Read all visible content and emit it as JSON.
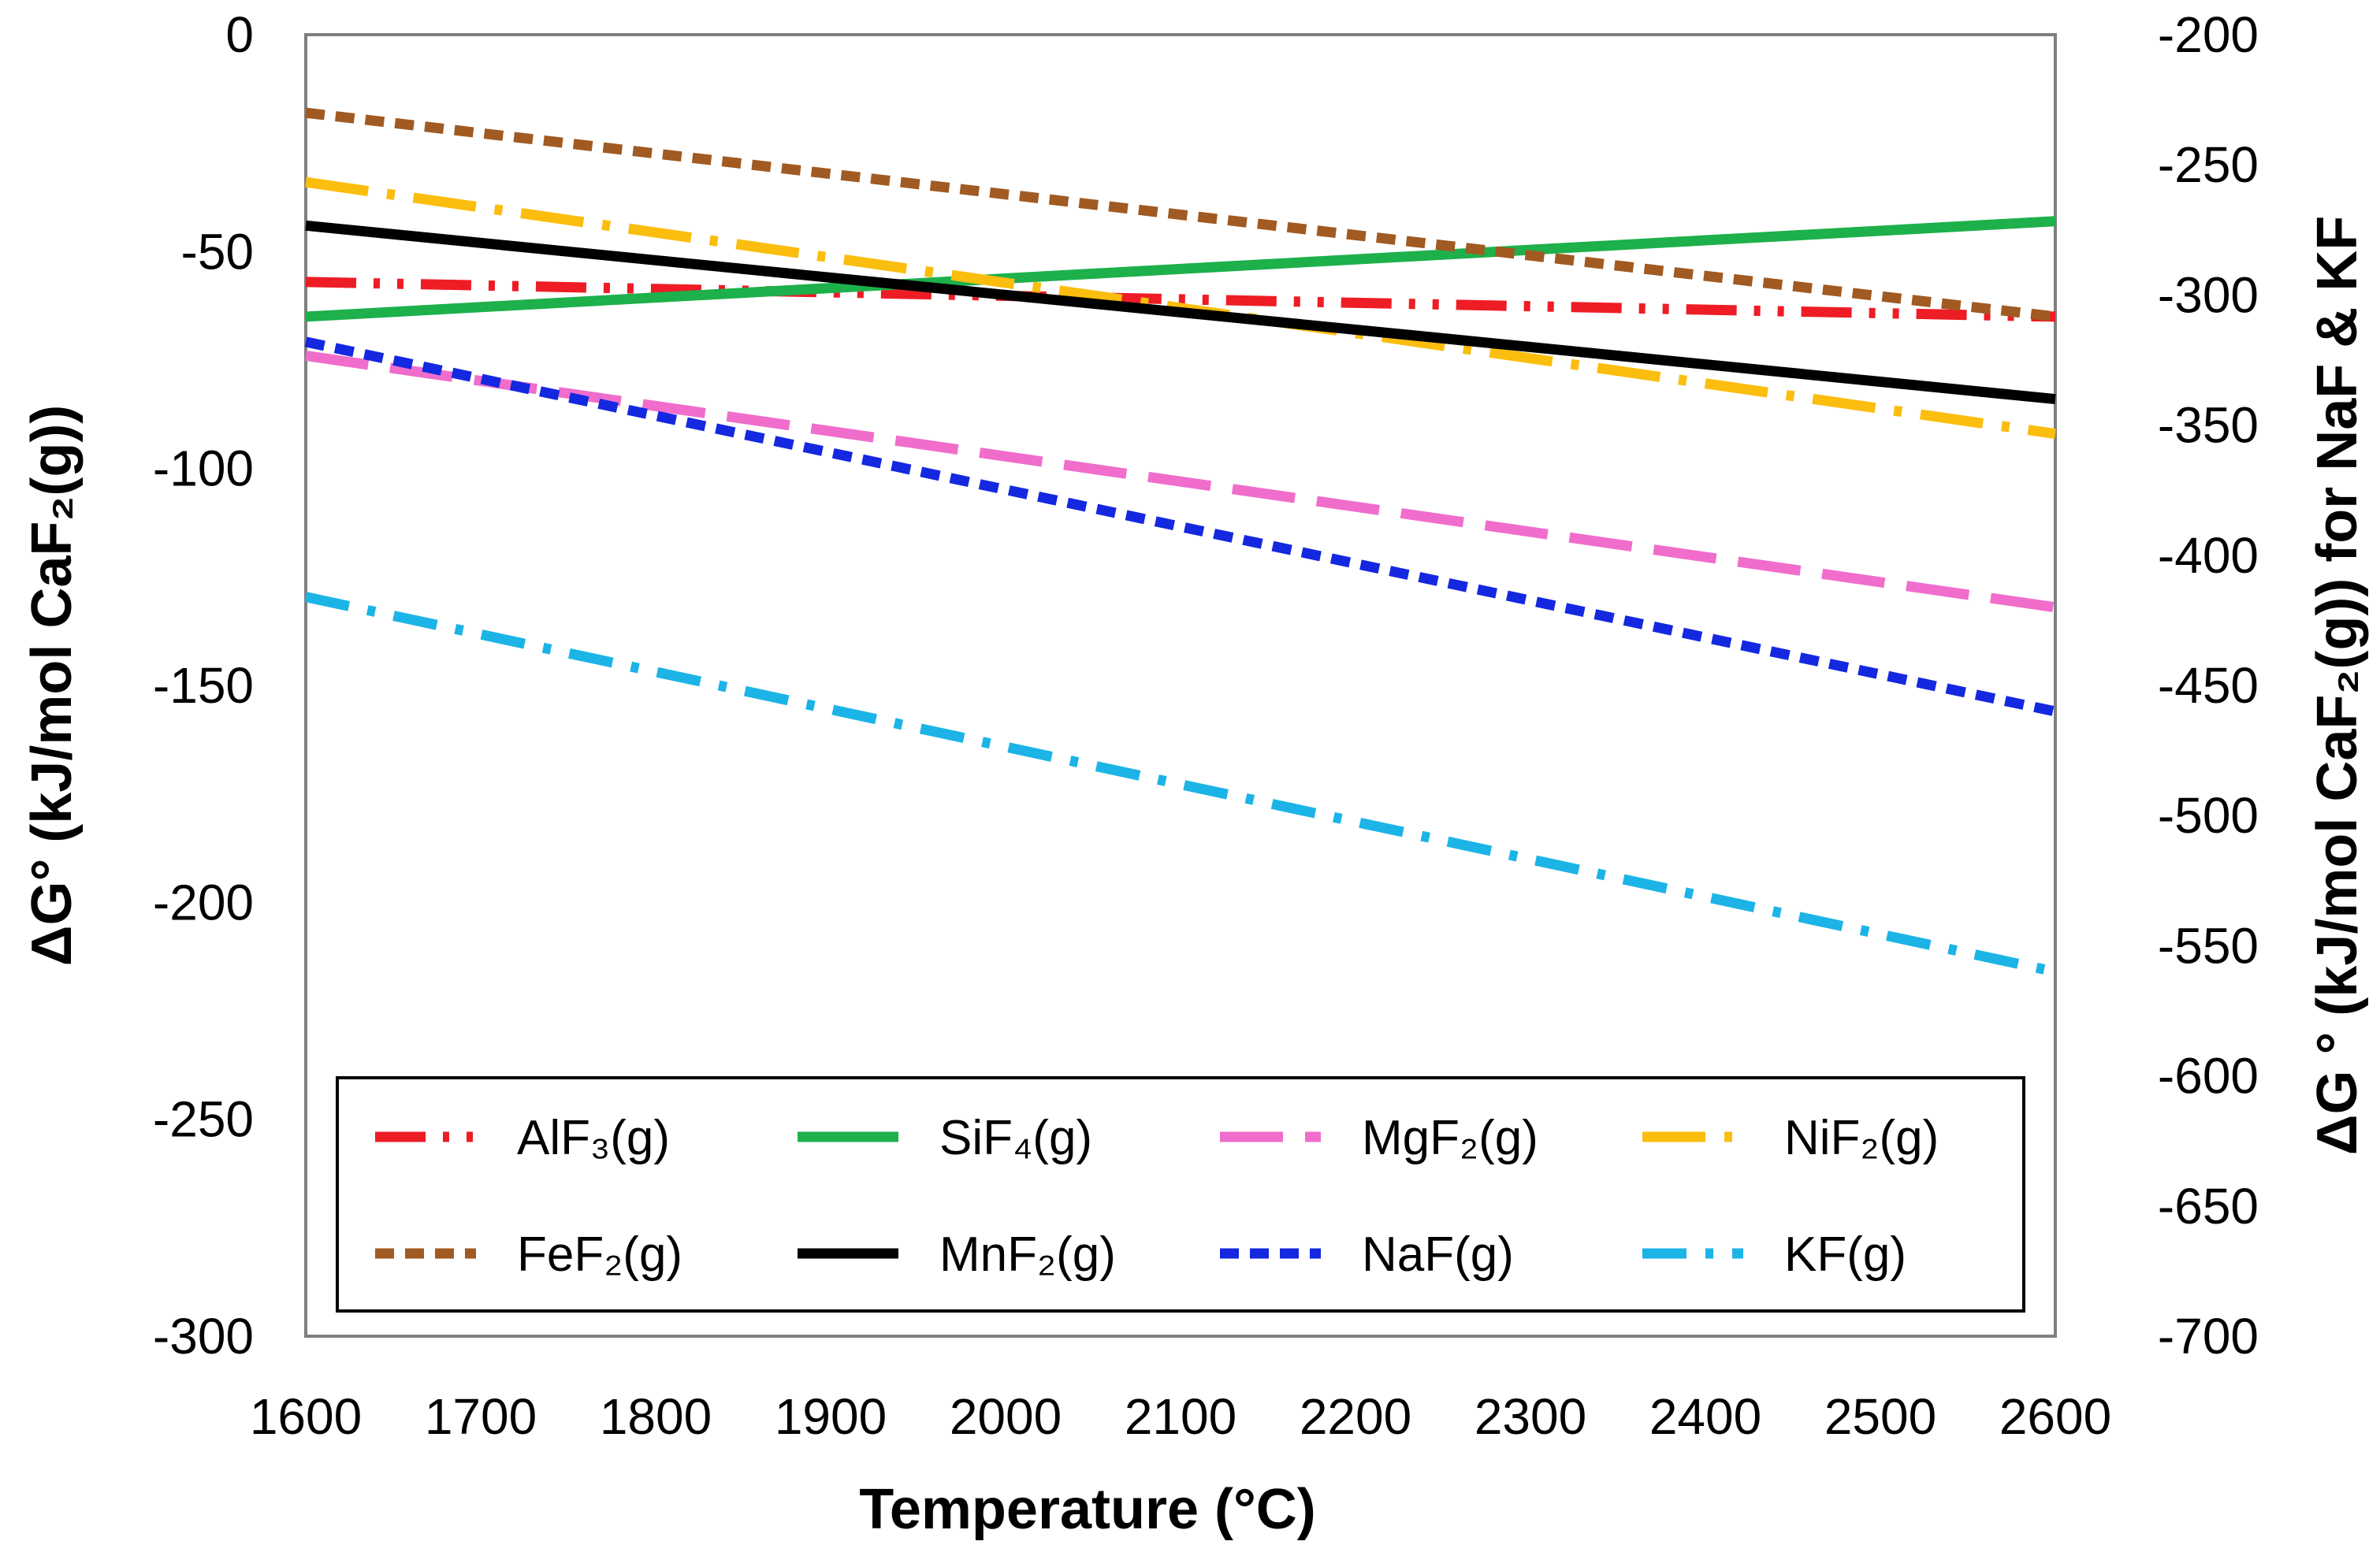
{
  "chart_data": {
    "type": "line",
    "title": "",
    "xlabel": "Temperature (°C)",
    "ylabel": "ΔG° (kJ/mol CaF₂(g))",
    "ylabel_right": "ΔG ° (kJ/mol CaF₂(g)) for NaF & KF",
    "xlim": [
      1600,
      2600
    ],
    "ylim": [
      -300,
      0
    ],
    "ylim_right": [
      -700,
      -200
    ],
    "grid": false,
    "legend_position": "bottom",
    "x_ticks": [
      "1600",
      "1700",
      "1800",
      "1900",
      "2000",
      "2100",
      "2200",
      "2300",
      "2400",
      "2500",
      "2600"
    ],
    "y_ticks": [
      "0",
      "-50",
      "-100",
      "-150",
      "-200",
      "-250",
      "-300"
    ],
    "y_ticks_right": [
      "-200",
      "-250",
      "-300",
      "-350",
      "-400",
      "-450",
      "-500",
      "-550",
      "-600",
      "-650",
      "-700"
    ],
    "x": [
      1600,
      2600
    ],
    "series": [
      {
        "name": "AlF₃(g)",
        "axis": "left",
        "y": [
          -57,
          -65
        ],
        "color": "#ee1c25",
        "style": "dash-dot-dot"
      },
      {
        "name": "SiF₄(g)",
        "axis": "left",
        "y": [
          -65,
          -43
        ],
        "color": "#1db04b",
        "style": "solid"
      },
      {
        "name": "MgF₂(g)",
        "axis": "left",
        "y": [
          -74,
          -132
        ],
        "color": "#f06dcb",
        "style": "long-dash"
      },
      {
        "name": "NiF₂(g)",
        "axis": "left",
        "y": [
          -34,
          -92
        ],
        "color": "#fbbd0e",
        "style": "long-dash-dot"
      },
      {
        "name": "FeF₂(g)",
        "axis": "left",
        "y": [
          -18,
          -65
        ],
        "color": "#a05a22",
        "style": "short-dash"
      },
      {
        "name": "MnF₂(g)",
        "axis": "left",
        "y": [
          -44,
          -84
        ],
        "color": "#000000",
        "style": "solid"
      },
      {
        "name": "NaF(g)",
        "axis": "right",
        "y": [
          -318,
          -460
        ],
        "color": "#1428e0",
        "style": "short-dash"
      },
      {
        "name": "KF(g)",
        "axis": "right",
        "y": [
          -416,
          -560
        ],
        "color": "#1cb4e6",
        "style": "dash-dot"
      }
    ]
  }
}
